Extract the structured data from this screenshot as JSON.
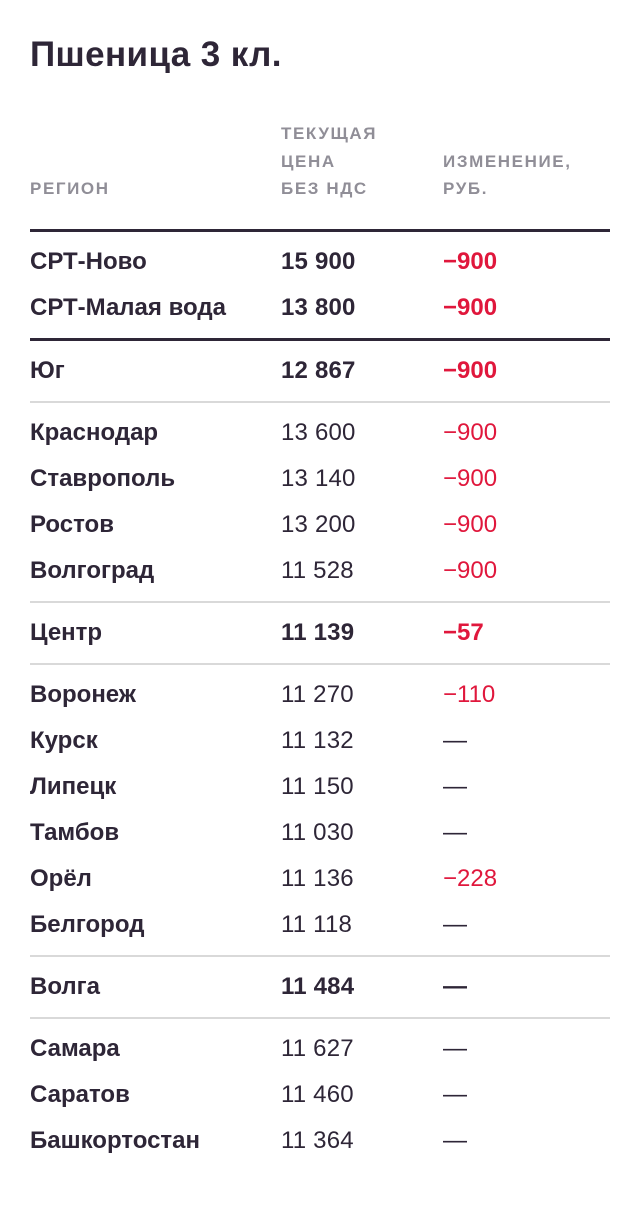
{
  "colors": {
    "background": "#ffffff",
    "text_dark": "#2e2637",
    "muted_gray": "#908e97",
    "accent_red": "#e0173c",
    "thin_rule": "#d9d9d9"
  },
  "title": "Пшеница 3 кл.",
  "table": {
    "headers": {
      "region": "РЕГИОН",
      "price": "ТЕКУЩАЯ\nЦЕНА\nБЕЗ НДС",
      "change": "ИЗМЕНЕНИЕ,\nРУБ."
    },
    "sections": [
      {
        "divider_before": "thick",
        "rows": [
          {
            "region": "СРТ-Ново",
            "price": "15 900",
            "change": "−900",
            "change_style": "red",
            "bold": true
          },
          {
            "region": "СРТ-Малая вода",
            "price": "13 800",
            "change": "−900",
            "change_style": "red",
            "bold": true
          }
        ]
      },
      {
        "divider_before": "thick",
        "rows": [
          {
            "region": "Юг",
            "price": "12 867",
            "change": "−900",
            "change_style": "red",
            "bold": true
          }
        ]
      },
      {
        "divider_before": "thin",
        "rows": [
          {
            "region": "Краснодар",
            "price": "13 600",
            "change": "−900",
            "change_style": "red",
            "bold": false
          },
          {
            "region": "Ставрополь",
            "price": "13 140",
            "change": "−900",
            "change_style": "red",
            "bold": false
          },
          {
            "region": "Ростов",
            "price": "13 200",
            "change": "−900",
            "change_style": "red",
            "bold": false
          },
          {
            "region": "Волгоград",
            "price": "11 528",
            "change": "−900",
            "change_style": "red",
            "bold": false
          }
        ]
      },
      {
        "divider_before": "thin",
        "rows": [
          {
            "region": "Центр",
            "price": "11 139",
            "change": "−57",
            "change_style": "red",
            "bold": true
          }
        ]
      },
      {
        "divider_before": "thin",
        "rows": [
          {
            "region": "Воронеж",
            "price": "11 270",
            "change": "−110",
            "change_style": "red",
            "bold": false
          },
          {
            "region": "Курск",
            "price": "11 132",
            "change": "—",
            "change_style": "dash",
            "bold": false
          },
          {
            "region": "Липецк",
            "price": "11 150",
            "change": "—",
            "change_style": "dash",
            "bold": false
          },
          {
            "region": "Тамбов",
            "price": "11 030",
            "change": "—",
            "change_style": "dash",
            "bold": false
          },
          {
            "region": "Орёл",
            "price": "11 136",
            "change": "−228",
            "change_style": "red",
            "bold": false
          },
          {
            "region": "Белгород",
            "price": "11 118",
            "change": "—",
            "change_style": "dash",
            "bold": false
          }
        ]
      },
      {
        "divider_before": "thin",
        "rows": [
          {
            "region": "Волга",
            "price": "11 484",
            "change": "—",
            "change_style": "dash",
            "bold": true
          }
        ]
      },
      {
        "divider_before": "thin",
        "rows": [
          {
            "region": "Самара",
            "price": "11 627",
            "change": "—",
            "change_style": "dash",
            "bold": false
          },
          {
            "region": "Саратов",
            "price": "11 460",
            "change": "—",
            "change_style": "dash",
            "bold": false
          },
          {
            "region": "Башкортостан",
            "price": "11 364",
            "change": "—",
            "change_style": "dash",
            "bold": false
          }
        ]
      }
    ]
  }
}
